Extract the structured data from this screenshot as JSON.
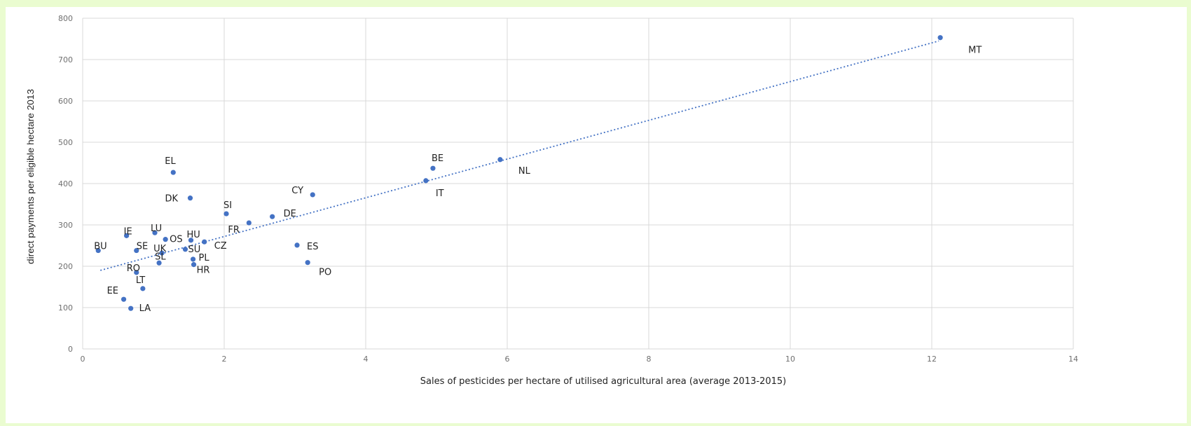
{
  "chart_data": {
    "type": "scatter",
    "xlabel": "Sales of pesticides per hectare of utilised agricultural area (average 2013-2015)",
    "ylabel": "direct payments per eligible hectare 2013",
    "xlim": [
      0,
      14
    ],
    "ylim": [
      0,
      800
    ],
    "xticks": [
      0,
      2,
      4,
      6,
      8,
      10,
      12,
      14
    ],
    "yticks": [
      0,
      100,
      200,
      300,
      400,
      500,
      600,
      700,
      800
    ],
    "grid": true,
    "trendline": {
      "style": "dotted",
      "from": [
        0.25,
        190
      ],
      "to": [
        12.1,
        745
      ]
    },
    "colors": {
      "points": "#4472c4",
      "grid": "#d9d9d9",
      "trend": "#4472c4",
      "background": "#eafcd0"
    },
    "points": [
      {
        "label": "MT",
        "x": 12.12,
        "y": 753
      },
      {
        "label": "NL",
        "x": 5.9,
        "y": 458
      },
      {
        "label": "BE",
        "x": 4.95,
        "y": 437
      },
      {
        "label": "IT",
        "x": 4.85,
        "y": 407
      },
      {
        "label": "CY",
        "x": 3.25,
        "y": 373
      },
      {
        "label": "ES",
        "x": 3.03,
        "y": 251
      },
      {
        "label": "PO",
        "x": 3.18,
        "y": 209
      },
      {
        "label": "DE",
        "x": 2.68,
        "y": 320
      },
      {
        "label": "FR",
        "x": 2.35,
        "y": 305
      },
      {
        "label": "SI",
        "x": 2.03,
        "y": 327
      },
      {
        "label": "CZ",
        "x": 1.72,
        "y": 259
      },
      {
        "label": "HU",
        "x": 1.53,
        "y": 263
      },
      {
        "label": "SU",
        "x": 1.45,
        "y": 241
      },
      {
        "label": "PL",
        "x": 1.56,
        "y": 217
      },
      {
        "label": "HR",
        "x": 1.57,
        "y": 204
      },
      {
        "label": "EL",
        "x": 1.28,
        "y": 427
      },
      {
        "label": "DK",
        "x": 1.52,
        "y": 365
      },
      {
        "label": "LU",
        "x": 1.02,
        "y": 281
      },
      {
        "label": "OS",
        "x": 1.17,
        "y": 265
      },
      {
        "label": "UK",
        "x": 1.12,
        "y": 232
      },
      {
        "label": "SL",
        "x": 1.08,
        "y": 208
      },
      {
        "label": "IE",
        "x": 0.62,
        "y": 274
      },
      {
        "label": "SE",
        "x": 0.76,
        "y": 238
      },
      {
        "label": "BU",
        "x": 0.22,
        "y": 238
      },
      {
        "label": "RO",
        "x": 0.76,
        "y": 185
      },
      {
        "label": "LT",
        "x": 0.85,
        "y": 146
      },
      {
        "label": "EE",
        "x": 0.58,
        "y": 120
      },
      {
        "label": "LA",
        "x": 0.68,
        "y": 98
      }
    ]
  }
}
